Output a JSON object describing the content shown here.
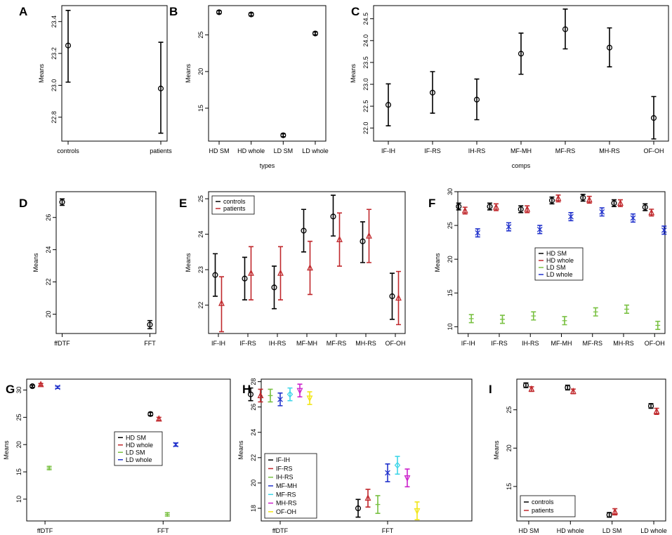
{
  "figure": {
    "colors": {
      "black": "#000000",
      "red": "#c0282c",
      "green": "#7ac143",
      "blue": "#2233cc",
      "cyan": "#3fd6e8",
      "magenta": "#cc22cc",
      "yellow": "#f2e618"
    }
  },
  "chart_data": [
    {
      "panel": "A",
      "type": "errorbar",
      "categories": [
        "controls",
        "patients"
      ],
      "series": [
        {
          "name": "",
          "color": "black",
          "marker": "circle",
          "values": [
            23.25,
            22.98
          ],
          "lower": [
            23.02,
            22.7
          ],
          "upper": [
            23.47,
            23.27
          ]
        }
      ],
      "ylim": [
        22.65,
        23.5
      ],
      "yticks": [
        "22.8",
        "23.0",
        "23.2",
        "23.4"
      ],
      "title": "",
      "xlabel": "",
      "ylabel": "Means"
    },
    {
      "panel": "B",
      "type": "errorbar",
      "categories": [
        "HD SM",
        "HD whole",
        "LD SM",
        "LD whole"
      ],
      "series": [
        {
          "name": "",
          "color": "black",
          "marker": "circle",
          "values": [
            28.1,
            27.8,
            11.3,
            25.2
          ],
          "lower": [
            27.9,
            27.6,
            11.1,
            25.0
          ],
          "upper": [
            28.3,
            28.0,
            11.5,
            25.4
          ]
        }
      ],
      "ylim": [
        10.5,
        29.0
      ],
      "yticks": [
        "15",
        "20",
        "25"
      ],
      "title": "",
      "xlabel": "types",
      "ylabel": "Means"
    },
    {
      "panel": "C",
      "type": "errorbar",
      "categories": [
        "IF-IH",
        "IF-RS",
        "IH-RS",
        "MF-MH",
        "MF-RS",
        "MH-RS",
        "OF-OH"
      ],
      "series": [
        {
          "name": "",
          "color": "black",
          "marker": "circle",
          "values": [
            22.53,
            22.81,
            22.65,
            23.7,
            24.26,
            23.84,
            22.23
          ],
          "lower": [
            22.05,
            22.34,
            22.19,
            23.23,
            23.81,
            23.4,
            21.75
          ],
          "upper": [
            23.01,
            23.29,
            23.12,
            24.17,
            24.72,
            24.29,
            22.72
          ]
        }
      ],
      "ylim": [
        21.7,
        24.8
      ],
      "yticks": [
        "22.0",
        "22.5",
        "23.0",
        "23.5",
        "24.0",
        "24.5"
      ],
      "title": "",
      "xlabel": "comps",
      "ylabel": "Means"
    },
    {
      "panel": "D",
      "type": "errorbar",
      "categories": [
        "ffDTF",
        "FFT"
      ],
      "series": [
        {
          "name": "",
          "color": "black",
          "marker": "circle",
          "values": [
            26.95,
            19.35
          ],
          "lower": [
            26.75,
            19.1
          ],
          "upper": [
            27.15,
            19.6
          ]
        }
      ],
      "ylim": [
        18.8,
        27.6
      ],
      "yticks": [
        "20",
        "22",
        "24",
        "26"
      ],
      "title": "",
      "xlabel": "",
      "ylabel": "Means"
    },
    {
      "panel": "E",
      "type": "errorbar",
      "categories": [
        "IF-IH",
        "IF-RS",
        "IH-RS",
        "MF-MH",
        "MF-RS",
        "MH-RS",
        "OF-OH"
      ],
      "series": [
        {
          "name": "controls",
          "color": "black",
          "marker": "circle",
          "values": [
            22.85,
            22.75,
            22.5,
            24.1,
            24.5,
            23.8,
            22.25
          ],
          "lower": [
            22.25,
            22.15,
            21.9,
            23.5,
            23.95,
            23.2,
            21.6
          ],
          "upper": [
            23.45,
            23.35,
            23.1,
            24.7,
            25.1,
            24.35,
            22.9
          ]
        },
        {
          "name": "patients",
          "color": "red",
          "marker": "triangle",
          "values": [
            22.05,
            22.9,
            22.9,
            23.05,
            23.85,
            23.95,
            22.2
          ],
          "lower": [
            21.25,
            22.15,
            22.15,
            22.3,
            23.1,
            23.2,
            21.45
          ],
          "upper": [
            22.8,
            23.65,
            23.65,
            23.8,
            24.6,
            24.7,
            22.95
          ]
        }
      ],
      "ylim": [
        21.2,
        25.2
      ],
      "yticks": [
        "22",
        "23",
        "24",
        "25"
      ],
      "legend": "top-left",
      "title": "",
      "xlabel": "",
      "ylabel": "Means"
    },
    {
      "panel": "F",
      "type": "errorbar",
      "categories": [
        "IF-IH",
        "IF-RS",
        "IH-RS",
        "MF-MH",
        "MF-RS",
        "MH-RS",
        "OF-OH"
      ],
      "series": [
        {
          "name": "HD SM",
          "color": "black",
          "marker": "circle",
          "values": [
            27.8,
            27.8,
            27.4,
            28.7,
            29.1,
            28.3,
            27.7
          ],
          "lower": [
            27.3,
            27.3,
            26.9,
            28.2,
            28.6,
            27.8,
            27.2
          ],
          "upper": [
            28.3,
            28.3,
            27.9,
            29.2,
            29.6,
            28.8,
            28.2
          ]
        },
        {
          "name": "HD whole",
          "color": "red",
          "marker": "triangle",
          "values": [
            27.2,
            27.7,
            27.4,
            29.0,
            28.8,
            28.3,
            26.9
          ],
          "lower": [
            26.7,
            27.2,
            26.9,
            28.5,
            28.3,
            27.8,
            26.4
          ],
          "upper": [
            27.7,
            28.2,
            27.9,
            29.5,
            29.3,
            28.8,
            27.4
          ]
        },
        {
          "name": "LD SM",
          "color": "green",
          "marker": "plus",
          "values": [
            11.2,
            11.1,
            11.6,
            10.9,
            12.2,
            12.6,
            10.2
          ],
          "lower": [
            10.6,
            10.5,
            11.0,
            10.3,
            11.6,
            12.0,
            9.6
          ],
          "upper": [
            11.8,
            11.7,
            12.2,
            11.5,
            12.8,
            13.2,
            10.8
          ]
        },
        {
          "name": "LD whole",
          "color": "blue",
          "marker": "x",
          "values": [
            23.9,
            24.8,
            24.4,
            26.3,
            27.0,
            26.1,
            24.3
          ],
          "lower": [
            23.3,
            24.2,
            23.8,
            25.7,
            26.4,
            25.5,
            23.7
          ],
          "upper": [
            24.5,
            25.4,
            25.0,
            26.9,
            27.6,
            26.7,
            24.9
          ]
        }
      ],
      "ylim": [
        9.0,
        30.0
      ],
      "yticks": [
        "10",
        "15",
        "20",
        "25",
        "30"
      ],
      "legend": "center-right",
      "title": "",
      "xlabel": "",
      "ylabel": "Means"
    },
    {
      "panel": "G",
      "type": "errorbar",
      "categories": [
        "ffDTF",
        "FFT"
      ],
      "series": [
        {
          "name": "HD SM",
          "color": "black",
          "marker": "circle",
          "values": [
            30.7,
            25.6
          ],
          "lower": [
            30.5,
            25.3
          ],
          "upper": [
            30.9,
            25.9
          ]
        },
        {
          "name": "HD whole",
          "color": "red",
          "marker": "triangle",
          "values": [
            31.0,
            24.7
          ],
          "lower": [
            30.8,
            24.4
          ],
          "upper": [
            31.2,
            25.0
          ]
        },
        {
          "name": "LD SM",
          "color": "green",
          "marker": "plus",
          "values": [
            15.7,
            7.2
          ],
          "lower": [
            15.4,
            6.9
          ],
          "upper": [
            16.0,
            7.5
          ]
        },
        {
          "name": "LD whole",
          "color": "blue",
          "marker": "x",
          "values": [
            30.5,
            20.0
          ],
          "lower": [
            30.3,
            19.7
          ],
          "upper": [
            30.7,
            20.3
          ]
        }
      ],
      "ylim": [
        6.0,
        32.0
      ],
      "yticks": [
        "10",
        "15",
        "20",
        "25",
        "30"
      ],
      "legend": "center",
      "title": "",
      "xlabel": "",
      "ylabel": "Means"
    },
    {
      "panel": "H",
      "type": "errorbar",
      "categories": [
        "ffDTF",
        "FFT"
      ],
      "series": [
        {
          "name": "IF-IH",
          "color": "black",
          "marker": "circle",
          "values": [
            27.0,
            18.0
          ],
          "lower": [
            26.5,
            17.3
          ],
          "upper": [
            27.5,
            18.7
          ]
        },
        {
          "name": "IF-RS",
          "color": "red",
          "marker": "triangle",
          "values": [
            26.9,
            18.8
          ],
          "lower": [
            26.4,
            18.1
          ],
          "upper": [
            27.4,
            19.5
          ]
        },
        {
          "name": "IH-RS",
          "color": "green",
          "marker": "plus",
          "values": [
            26.9,
            18.3
          ],
          "lower": [
            26.4,
            17.6
          ],
          "upper": [
            27.4,
            19.0
          ]
        },
        {
          "name": "MF-MH",
          "color": "blue",
          "marker": "x",
          "values": [
            26.6,
            20.8
          ],
          "lower": [
            26.1,
            20.1
          ],
          "upper": [
            27.1,
            21.5
          ]
        },
        {
          "name": "MF-RS",
          "color": "cyan",
          "marker": "diamond",
          "values": [
            27.0,
            21.4
          ],
          "lower": [
            26.5,
            20.7
          ],
          "upper": [
            27.5,
            22.1
          ]
        },
        {
          "name": "MH-RS",
          "color": "magenta",
          "marker": "triangle-down",
          "values": [
            27.3,
            20.4
          ],
          "lower": [
            26.8,
            19.7
          ],
          "upper": [
            27.8,
            21.1
          ]
        },
        {
          "name": "OF-OH",
          "color": "yellow",
          "marker": "triangle-down",
          "values": [
            26.7,
            17.8
          ],
          "lower": [
            26.2,
            17.1
          ],
          "upper": [
            27.2,
            18.5
          ]
        }
      ],
      "ylim": [
        17.0,
        28.2
      ],
      "yticks": [
        "18",
        "20",
        "22",
        "24",
        "26",
        "28"
      ],
      "legend": "bottom-left",
      "title": "",
      "xlabel": "",
      "ylabel": "Means"
    },
    {
      "panel": "I",
      "type": "errorbar",
      "categories": [
        "HD SM",
        "HD whole",
        "LD SM",
        "LD whole"
      ],
      "series": [
        {
          "name": "controls",
          "color": "black",
          "marker": "circle",
          "values": [
            28.2,
            27.9,
            11.3,
            25.5
          ],
          "lower": [
            27.9,
            27.6,
            11.0,
            25.2
          ],
          "upper": [
            28.5,
            28.2,
            11.6,
            25.8
          ]
        },
        {
          "name": "patients",
          "color": "red",
          "marker": "triangle",
          "values": [
            27.7,
            27.4,
            11.7,
            24.8
          ],
          "lower": [
            27.4,
            27.1,
            11.3,
            24.4
          ],
          "upper": [
            28.0,
            27.7,
            12.1,
            25.2
          ]
        }
      ],
      "ylim": [
        10.5,
        29.0
      ],
      "yticks": [
        "15",
        "20",
        "25"
      ],
      "legend": "bottom-left",
      "title": "",
      "xlabel": "",
      "ylabel": "Means"
    }
  ]
}
